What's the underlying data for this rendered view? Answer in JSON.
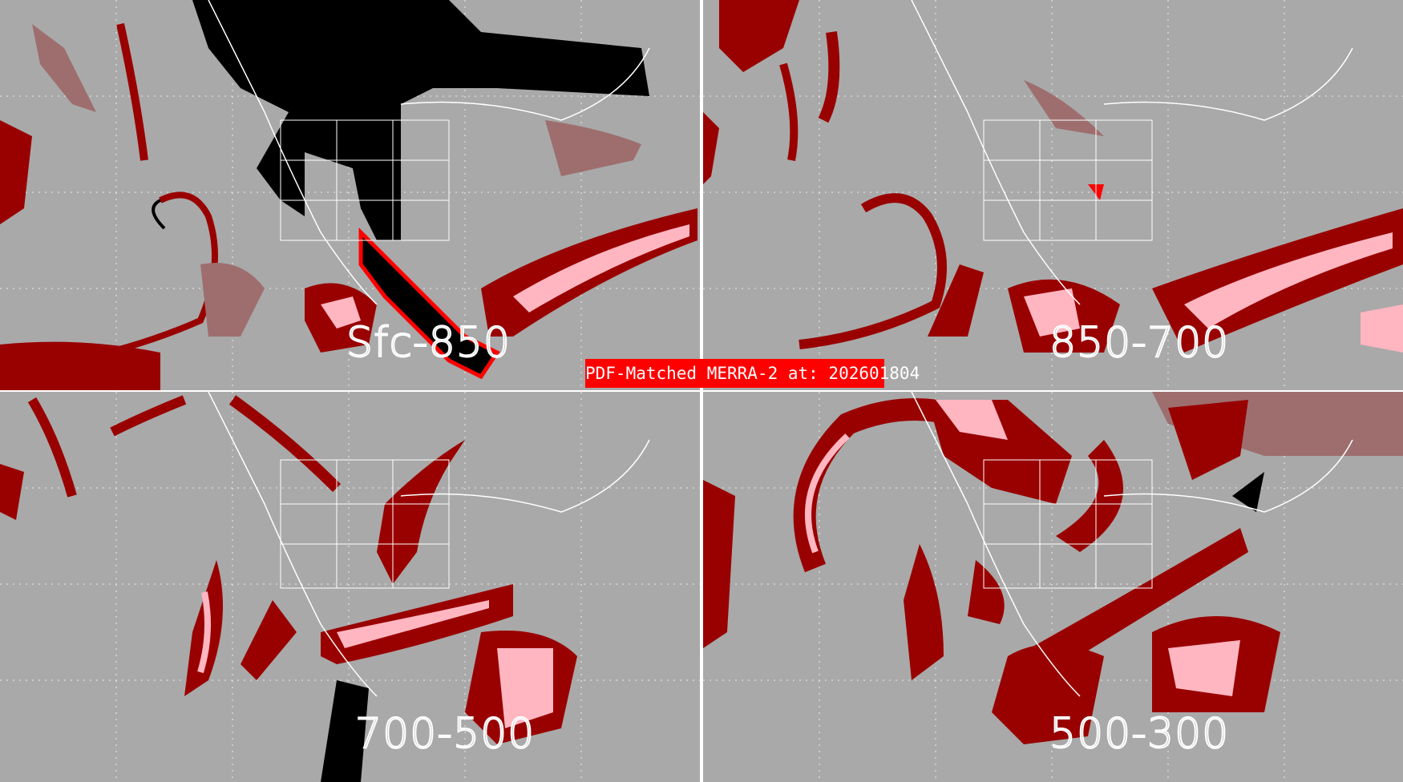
{
  "title": "PDF-Matched MERRA-2 at: 202601804",
  "colors": {
    "background": "#a9a9a9",
    "dark_red": "#990000",
    "rosy_brown": "#9e6e6e",
    "pink": "#ffb6c1",
    "red": "#ff0000",
    "black": "#000000",
    "lines": "#ffffff"
  },
  "panels": [
    {
      "label": "Sfc-850"
    },
    {
      "label": "850-700"
    },
    {
      "label": "700-500"
    },
    {
      "label": "500-300"
    }
  ]
}
